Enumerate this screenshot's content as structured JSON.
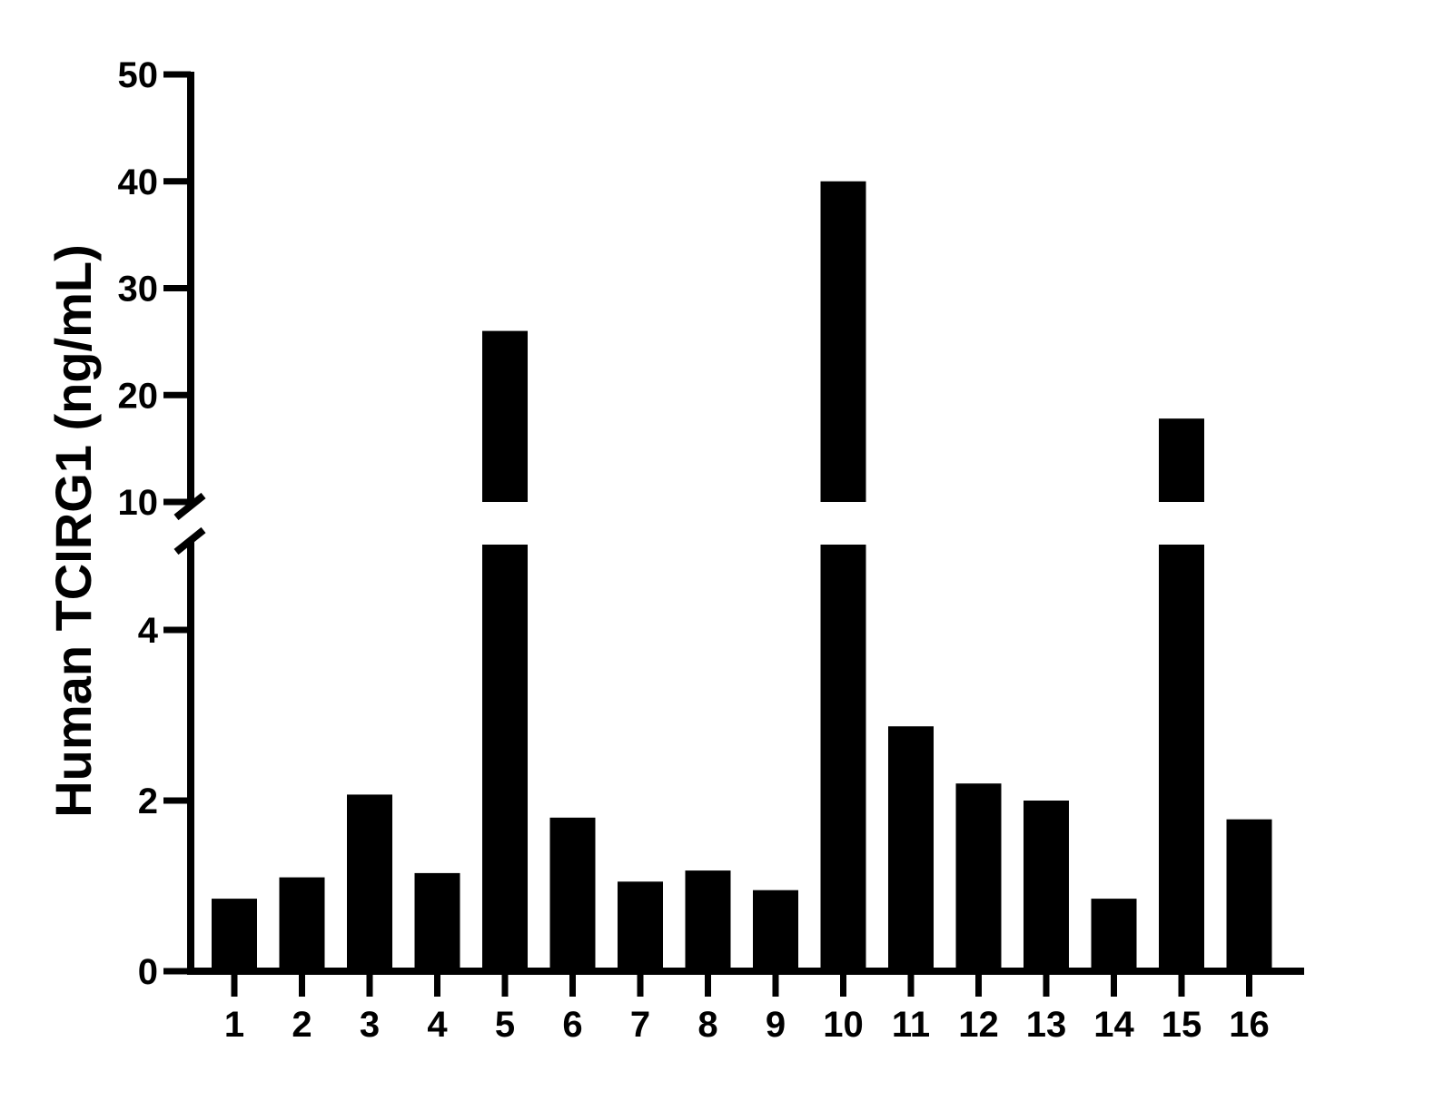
{
  "chart_data": {
    "type": "bar",
    "title": "",
    "xlabel": "",
    "ylabel": "Human TCIRG1 (ng/mL)",
    "categories": [
      "1",
      "2",
      "3",
      "4",
      "5",
      "6",
      "7",
      "8",
      "9",
      "10",
      "11",
      "12",
      "13",
      "14",
      "15",
      "16"
    ],
    "values": [
      0.85,
      1.1,
      2.07,
      1.15,
      26.0,
      1.8,
      1.05,
      1.18,
      0.95,
      40.0,
      2.87,
      2.2,
      2.0,
      0.85,
      17.8,
      1.78
    ],
    "axis_break": {
      "lower_range": [
        0,
        5
      ],
      "upper_range": [
        10,
        50
      ]
    },
    "y_ticks_lower": [
      {
        "value": 0,
        "label": "0"
      },
      {
        "value": 2,
        "label": "2"
      },
      {
        "value": 4,
        "label": "4"
      }
    ],
    "y_ticks_upper": [
      {
        "value": 10,
        "label": "10"
      },
      {
        "value": 20,
        "label": "20"
      },
      {
        "value": 30,
        "label": "30"
      },
      {
        "value": 40,
        "label": "40"
      },
      {
        "value": 50,
        "label": "50"
      }
    ],
    "bar_color": "#000000",
    "grid": false,
    "legend": "none"
  }
}
